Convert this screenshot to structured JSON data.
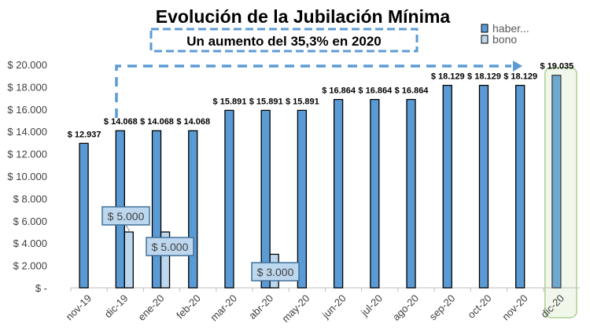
{
  "chart_data": {
    "type": "bar",
    "title": "Evolución de la Jubilación Mínima",
    "annotation": "Un aumento del 35,3% en 2020",
    "categories": [
      "nov-19",
      "dic-19",
      "ene-20",
      "feb-20",
      "mar-20",
      "abr-20",
      "may-20",
      "jun-20",
      "jul-20",
      "ago-20",
      "sep-20",
      "oct-20",
      "nov-20",
      "dic-20"
    ],
    "series": [
      {
        "name": "haber...",
        "color": "#5b9bd5",
        "values": [
          12937,
          14068,
          14068,
          14068,
          15891,
          15891,
          15891,
          16864,
          16864,
          16864,
          18129,
          18129,
          18129,
          19035
        ],
        "labels": [
          "$ 12.937",
          "$ 14.068",
          "$ 14.068",
          "$ 14.068",
          "$ 15.891",
          "$ 15.891",
          "$ 15.891",
          "$ 16.864",
          "$ 16.864",
          "$ 16.864",
          "$ 18.129",
          "$ 18.129",
          "$ 18.129",
          "$ 19.035"
        ]
      },
      {
        "name": "bono",
        "color": "#bdd7ee",
        "values": [
          0,
          5000,
          5000,
          0,
          0,
          3000,
          0,
          0,
          0,
          0,
          0,
          0,
          0,
          0
        ],
        "labels": [
          "",
          "$ 5.000",
          "$ 5.000",
          "",
          "",
          "$ 3.000",
          "",
          "",
          "",
          "",
          "",
          "",
          "",
          ""
        ]
      }
    ],
    "yticks": [
      "$ -",
      "$ 2.000",
      "$ 4.000",
      "$ 6.000",
      "$ 8.000",
      "$ 10.000",
      "$ 12.000",
      "$ 14.000",
      "$ 16.000",
      "$ 18.000",
      "$ 20.000"
    ],
    "ylim": [
      0,
      20000
    ],
    "grid": false,
    "legend": "top-right",
    "highlight_category": "dic-20",
    "highlight_color": "#a9d18e"
  }
}
